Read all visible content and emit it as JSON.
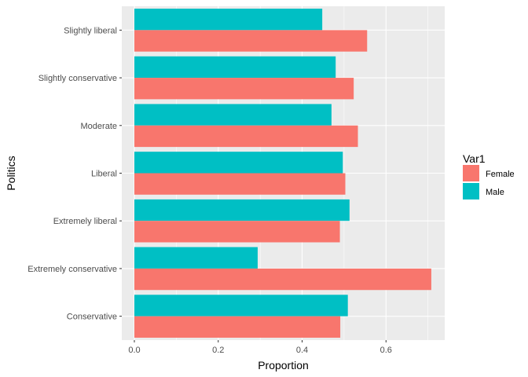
{
  "chart_data": {
    "type": "bar",
    "orientation": "horizontal",
    "categories": [
      "Slightly liberal",
      "Slightly conservative",
      "Moderate",
      "Liberal",
      "Extremely liberal",
      "Extremely conservative",
      "Conservative"
    ],
    "series": [
      {
        "name": "Female",
        "color": "#F8766D",
        "values": [
          0.555,
          0.523,
          0.533,
          0.503,
          0.49,
          0.708,
          0.491
        ]
      },
      {
        "name": "Male",
        "color": "#00BFC4",
        "values": [
          0.448,
          0.48,
          0.47,
          0.497,
          0.513,
          0.294,
          0.509
        ]
      }
    ],
    "xlabel": "Proportion",
    "ylabel": "Politics",
    "xlim": [
      -0.03,
      0.74
    ],
    "xticks": [
      0.0,
      0.2,
      0.4,
      0.6
    ],
    "xtick_labels": [
      "0.0",
      "0.2",
      "0.4",
      "0.6"
    ],
    "legend": {
      "title": "Var1",
      "position": "right"
    },
    "grid": true,
    "panel_background": "#EBEBEB"
  }
}
